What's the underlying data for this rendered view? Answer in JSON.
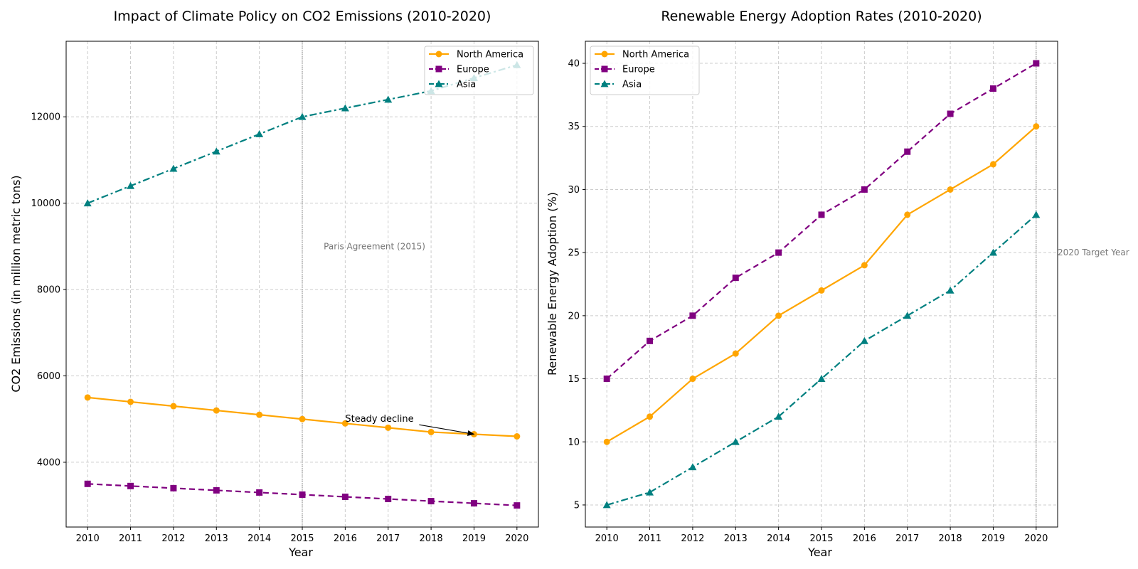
{
  "chart_data": [
    {
      "type": "line",
      "title": "Impact of Climate Policy on CO2 Emissions (2010-2020)",
      "xlabel": "Year",
      "ylabel": "CO2 Emissions (in million metric tons)",
      "x": [
        2010,
        2011,
        2012,
        2013,
        2014,
        2015,
        2016,
        2017,
        2018,
        2019,
        2020
      ],
      "xlim": [
        2009.5,
        2020.5
      ],
      "ylim": [
        2500,
        13750
      ],
      "yticks": [
        4000,
        6000,
        8000,
        10000,
        12000
      ],
      "grid": true,
      "legend_position": "top-right",
      "series": [
        {
          "name": "North America",
          "color": "#FFA500",
          "marker": "circle",
          "dash": "solid",
          "values": [
            5500,
            5400,
            5300,
            5200,
            5100,
            5000,
            4900,
            4800,
            4700,
            4650,
            4600
          ]
        },
        {
          "name": "Europe",
          "color": "#800080",
          "marker": "square",
          "dash": "dashed",
          "values": [
            3500,
            3450,
            3400,
            3350,
            3300,
            3250,
            3200,
            3150,
            3100,
            3050,
            3000
          ]
        },
        {
          "name": "Asia",
          "color": "#008080",
          "marker": "triangle",
          "dash": "dashdot",
          "values": [
            10000,
            10400,
            10800,
            11200,
            11600,
            12000,
            12200,
            12400,
            12600,
            12900,
            13200
          ]
        }
      ],
      "vline": {
        "x": 2015
      },
      "annotations": [
        {
          "text": "Paris Agreement (2015)",
          "x": 2015.5,
          "y": 9000,
          "style": "gray",
          "anchor": "start"
        },
        {
          "text": "Steady decline",
          "x": 2016,
          "y": 5000,
          "style": "dark",
          "anchor": "start",
          "arrow_to": {
            "x": 2019,
            "y": 4650
          }
        }
      ]
    },
    {
      "type": "line",
      "title": "Renewable Energy Adoption Rates (2010-2020)",
      "xlabel": "Year",
      "ylabel": "Renewable Energy Adoption (%)",
      "x": [
        2010,
        2011,
        2012,
        2013,
        2014,
        2015,
        2016,
        2017,
        2018,
        2019,
        2020
      ],
      "xlim": [
        2009.5,
        2020.5
      ],
      "ylim": [
        3.25,
        41.75
      ],
      "yticks": [
        5,
        10,
        15,
        20,
        25,
        30,
        35,
        40
      ],
      "grid": true,
      "legend_position": "top-left",
      "series": [
        {
          "name": "North America",
          "color": "#FFA500",
          "marker": "circle",
          "dash": "solid",
          "values": [
            10,
            12,
            15,
            17,
            20,
            22,
            24,
            28,
            30,
            32,
            35
          ]
        },
        {
          "name": "Europe",
          "color": "#800080",
          "marker": "square",
          "dash": "dashed",
          "values": [
            15,
            18,
            20,
            23,
            25,
            28,
            30,
            33,
            36,
            38,
            40
          ]
        },
        {
          "name": "Asia",
          "color": "#008080",
          "marker": "triangle",
          "dash": "dashdot",
          "values": [
            5,
            6,
            8,
            10,
            12,
            15,
            18,
            20,
            22,
            25,
            28
          ]
        }
      ],
      "vline": {
        "x": 2020
      },
      "annotations": [
        {
          "text": "2020 Target Year",
          "x": 2020.5,
          "y": 25,
          "style": "gray",
          "anchor": "start"
        }
      ]
    }
  ]
}
